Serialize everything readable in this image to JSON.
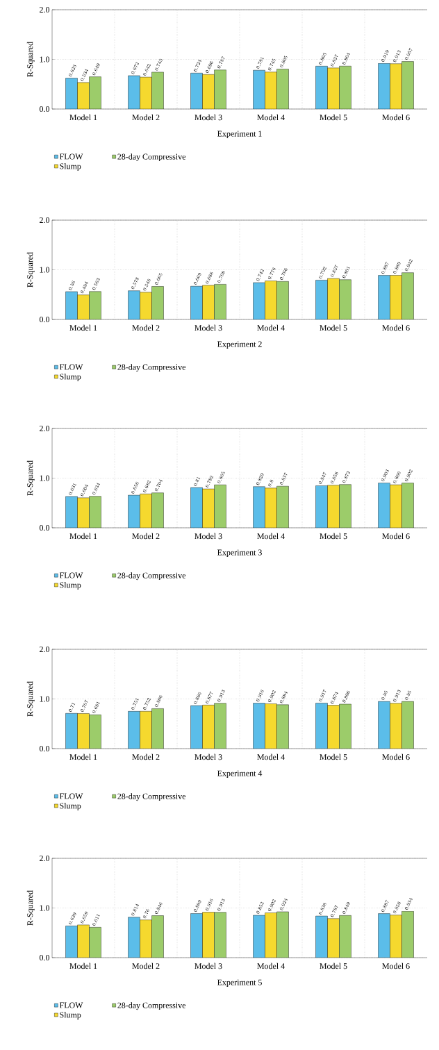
{
  "chart_data": [
    {
      "type": "bar",
      "categories": [
        "Model 1",
        "Model 2",
        "Model 3",
        "Model 4",
        "Model 5",
        "Model 6"
      ],
      "xlabel": "Experiment 1",
      "ylabel": "R-Squared",
      "ylim": [
        0,
        2
      ],
      "yticks": [
        {
          "value": 0,
          "label": "0.0"
        },
        {
          "value": 1,
          "label": "1.0"
        },
        {
          "value": 2,
          "label": "2.0"
        }
      ],
      "grid": true,
      "legend": "bottom",
      "data_labels": true,
      "series": [
        {
          "name": "FLOW",
          "color": "#5bbde9",
          "values": [
            0.623,
            0.672,
            0.724,
            0.781,
            0.863,
            0.919
          ]
        },
        {
          "name": "Slump",
          "color": "#f5d92e",
          "values": [
            0.534,
            0.642,
            0.696,
            0.745,
            0.827,
            0.913
          ]
        },
        {
          "name": "28-day Compressive",
          "color": "#9ccc6a",
          "values": [
            0.649,
            0.743,
            0.787,
            0.805,
            0.864,
            0.957
          ]
        }
      ]
    },
    {
      "type": "bar",
      "categories": [
        "Model 1",
        "Model 2",
        "Model 3",
        "Model 4",
        "Model 5",
        "Model 6"
      ],
      "xlabel": "Experiment 2",
      "ylabel": "R-Squared",
      "ylim": [
        0,
        2
      ],
      "yticks": [
        {
          "value": 0,
          "label": "0.0"
        },
        {
          "value": 1,
          "label": "1.0"
        },
        {
          "value": 2,
          "label": "2.0"
        }
      ],
      "grid": true,
      "legend": "bottom",
      "data_labels": true,
      "series": [
        {
          "name": "FLOW",
          "color": "#5bbde9",
          "values": [
            0.56,
            0.578,
            0.669,
            0.742,
            0.792,
            0.887
          ]
        },
        {
          "name": "Slump",
          "color": "#f5d92e",
          "values": [
            0.494,
            0.548,
            0.688,
            0.776,
            0.827,
            0.889
          ]
        },
        {
          "name": "28-day Compressive",
          "color": "#9ccc6a",
          "values": [
            0.563,
            0.665,
            0.708,
            0.766,
            0.801,
            0.942
          ]
        }
      ]
    },
    {
      "type": "bar",
      "categories": [
        "Model 1",
        "Model 2",
        "Model 3",
        "Model 4",
        "Model 5",
        "Model 6"
      ],
      "xlabel": "Experiment 3",
      "ylabel": "R-Squared",
      "ylim": [
        0,
        2
      ],
      "yticks": [
        {
          "value": 0,
          "label": "0.0"
        },
        {
          "value": 1,
          "label": "1.0"
        },
        {
          "value": 2,
          "label": "2.0"
        }
      ],
      "grid": true,
      "legend": "bottom",
      "data_labels": true,
      "series": [
        {
          "name": "FLOW",
          "color": "#5bbde9",
          "values": [
            0.631,
            0.656,
            0.81,
            0.829,
            0.847,
            0.903
          ]
        },
        {
          "name": "Slump",
          "color": "#f5d92e",
          "values": [
            0.604,
            0.682,
            0.782,
            0.8,
            0.858,
            0.866
          ]
        },
        {
          "name": "28-day Compressive",
          "color": "#9ccc6a",
          "values": [
            0.634,
            0.704,
            0.865,
            0.837,
            0.872,
            0.902
          ]
        }
      ]
    },
    {
      "type": "bar",
      "categories": [
        "Model 1",
        "Model 2",
        "Model 3",
        "Model 4",
        "Model 5",
        "Model 6"
      ],
      "xlabel": "Experiment 4",
      "ylabel": "R-Squared",
      "ylim": [
        0,
        2
      ],
      "yticks": [
        {
          "value": 0,
          "label": "0.0"
        },
        {
          "value": 1,
          "label": "1.0"
        },
        {
          "value": 2,
          "label": "2.0"
        }
      ],
      "grid": true,
      "legend": "bottom",
      "data_labels": true,
      "series": [
        {
          "name": "FLOW",
          "color": "#5bbde9",
          "values": [
            0.71,
            0.751,
            0.866,
            0.916,
            0.917,
            0.95
          ]
        },
        {
          "name": "Slump",
          "color": "#f5d92e",
          "values": [
            0.707,
            0.752,
            0.877,
            0.902,
            0.874,
            0.913
          ]
        },
        {
          "name": "28-day Compressive",
          "color": "#9ccc6a",
          "values": [
            0.681,
            0.806,
            0.913,
            0.884,
            0.896,
            0.95
          ]
        }
      ]
    },
    {
      "type": "bar",
      "categories": [
        "Model 1",
        "Model 2",
        "Model 3",
        "Model 4",
        "Model 5",
        "Model 6"
      ],
      "xlabel": "Experiment 5",
      "ylabel": "R-Squared",
      "ylim": [
        0,
        2
      ],
      "yticks": [
        {
          "value": 0,
          "label": "0.0"
        },
        {
          "value": 1,
          "label": "1.0"
        },
        {
          "value": 2,
          "label": "2.0"
        }
      ],
      "grid": true,
      "legend": "bottom",
      "data_labels": true,
      "series": [
        {
          "name": "FLOW",
          "color": "#5bbde9",
          "values": [
            0.639,
            0.814,
            0.889,
            0.853,
            0.838,
            0.887
          ]
        },
        {
          "name": "Slump",
          "color": "#f5d92e",
          "values": [
            0.659,
            0.76,
            0.916,
            0.902,
            0.787,
            0.858
          ]
        },
        {
          "name": "28-day Compressive",
          "color": "#9ccc6a",
          "values": [
            0.611,
            0.846,
            0.913,
            0.924,
            0.849,
            0.934
          ]
        }
      ]
    }
  ]
}
